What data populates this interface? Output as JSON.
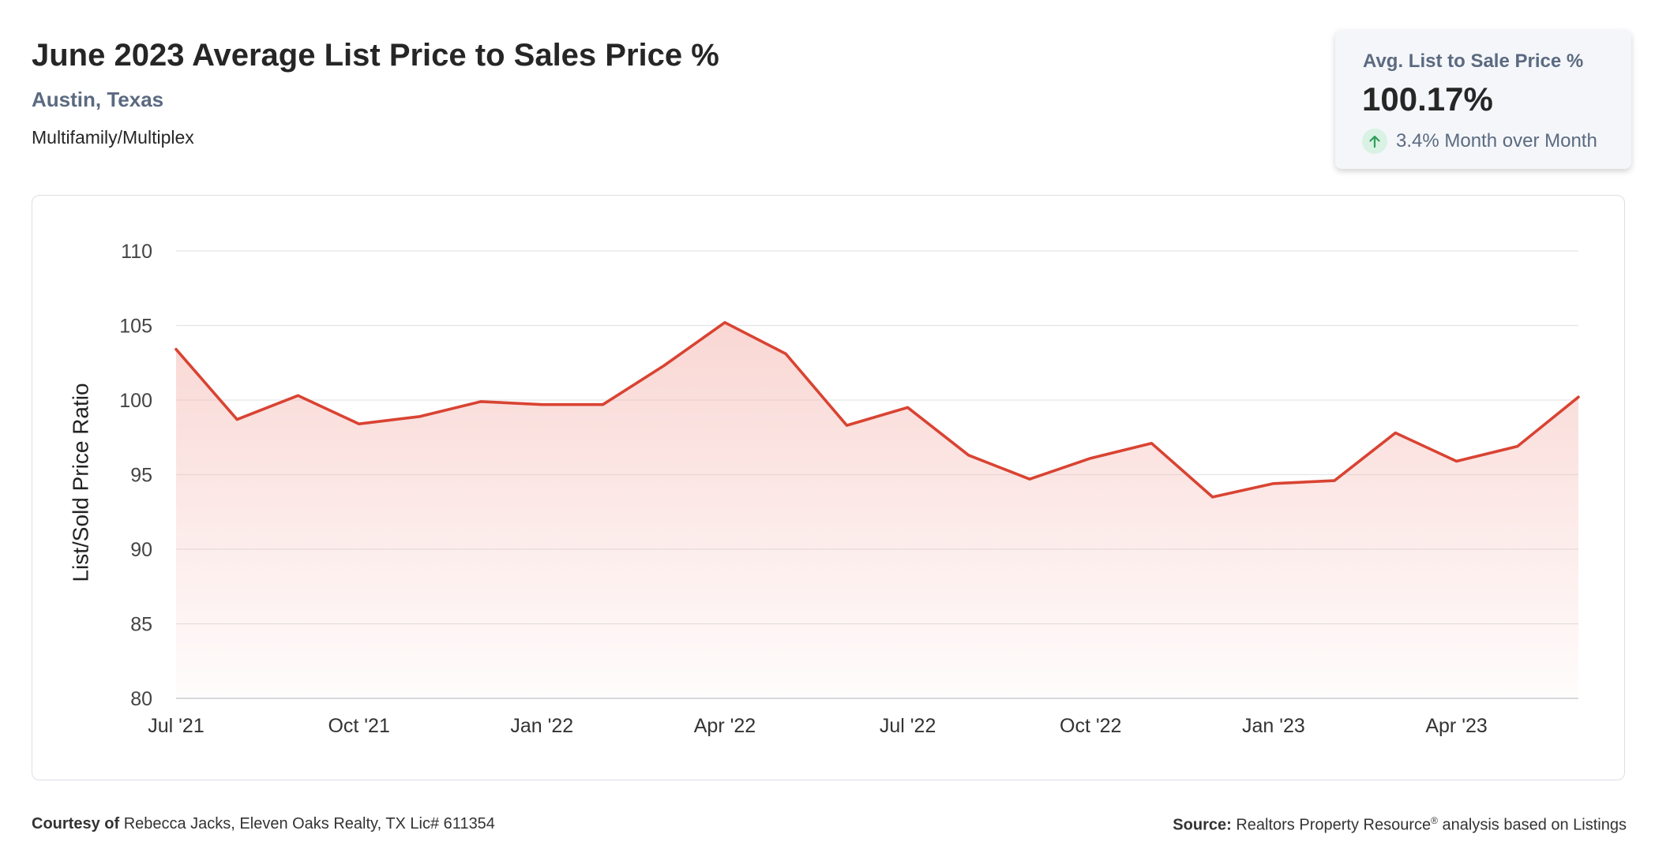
{
  "header": {
    "title": "June 2023 Average List Price to Sales Price %",
    "location": "Austin, Texas",
    "category": "Multifamily/Multiplex"
  },
  "kpi": {
    "label": "Avg. List to Sale Price %",
    "value": "100.17%",
    "change": "3.4% Month over Month",
    "change_icon": "arrow-up-icon",
    "change_color": "#2f9e5b"
  },
  "footer": {
    "courtesy_label": "Courtesy of",
    "courtesy_text": "Rebecca Jacks, Eleven Oaks Realty, TX Lic# 611354",
    "source_label": "Source:",
    "source_text_before": "Realtors Property Resource",
    "source_mark": "®",
    "source_text_after": " analysis based on Listings"
  },
  "chart_data": {
    "type": "area",
    "ylabel": "List/Sold Price Ratio",
    "xlabel": "",
    "ylim": [
      80,
      110
    ],
    "yticks": [
      80,
      85,
      90,
      95,
      100,
      105,
      110
    ],
    "grid": true,
    "line_color": "#d94332",
    "fill_color": "#f4b6b0",
    "x": [
      "Jul '21",
      "Aug '21",
      "Sep '21",
      "Oct '21",
      "Nov '21",
      "Dec '21",
      "Jan '22",
      "Feb '22",
      "Mar '22",
      "Apr '22",
      "May '22",
      "Jun '22",
      "Jul '22",
      "Aug '22",
      "Sep '22",
      "Oct '22",
      "Nov '22",
      "Dec '22",
      "Jan '23",
      "Feb '23",
      "Mar '23",
      "Apr '23",
      "May '23",
      "Jun '23"
    ],
    "x_tick_labels": [
      "Jul '21",
      "Oct '21",
      "Jan '22",
      "Apr '22",
      "Jul '22",
      "Oct '22",
      "Jan '23",
      "Apr '23"
    ],
    "series": [
      {
        "values": [
          103.4,
          98.7,
          100.3,
          98.4,
          98.9,
          99.9,
          99.7,
          99.7,
          102.3,
          105.2,
          103.1,
          98.3,
          99.5,
          96.3,
          94.7,
          96.1,
          97.1,
          93.5,
          94.4,
          94.6,
          97.8,
          95.9,
          96.9,
          100.2
        ]
      }
    ]
  }
}
